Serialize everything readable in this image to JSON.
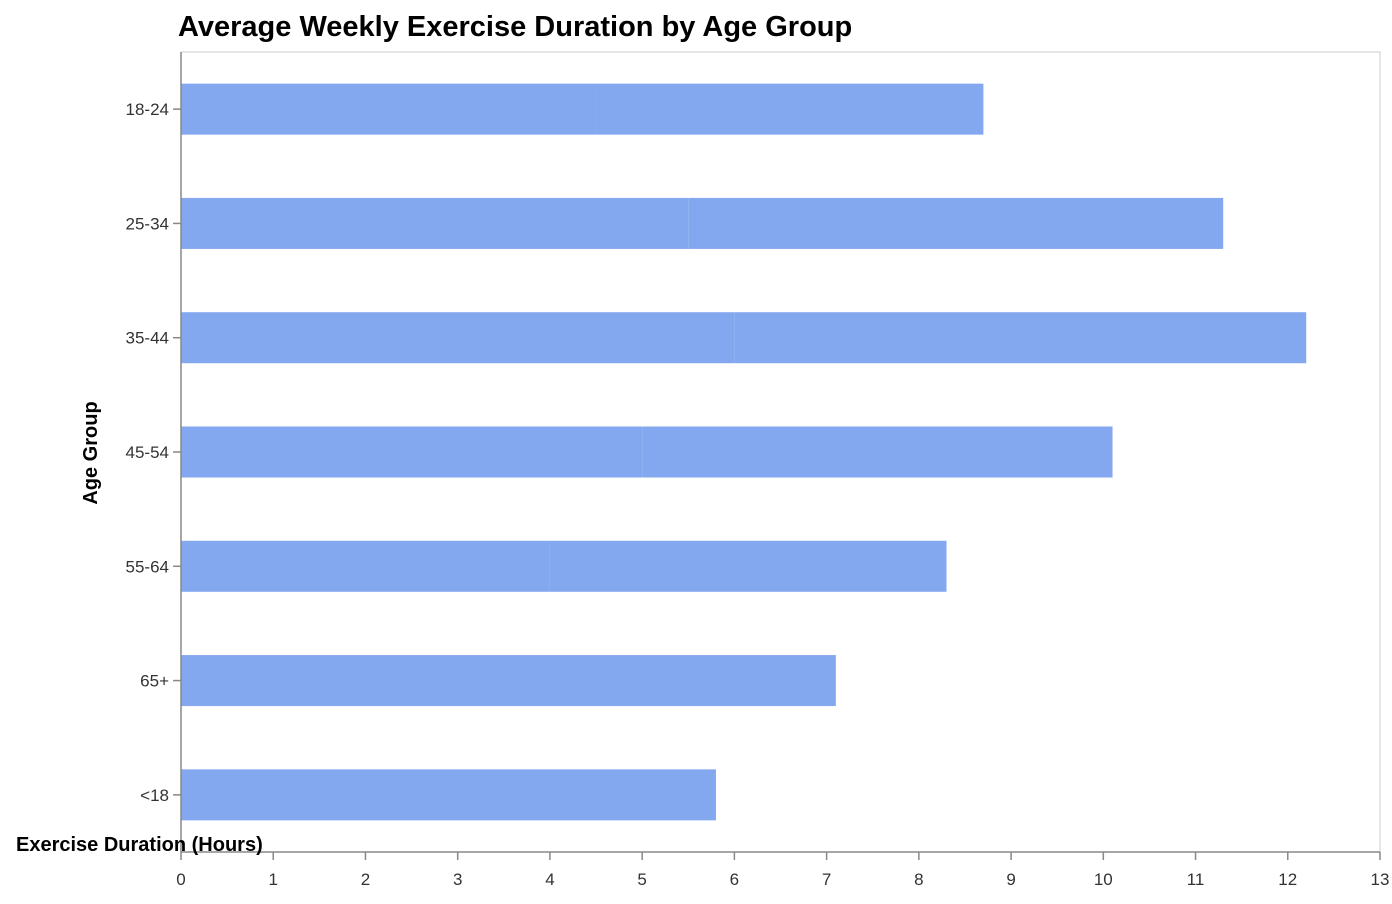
{
  "chart_data": {
    "type": "bar",
    "orientation": "horizontal",
    "stacked": true,
    "title": "Average Weekly Exercise Duration by Age Group",
    "xlabel": "Exercise Duration (Hours)",
    "ylabel": "Age Group",
    "xlim": [
      0,
      13
    ],
    "x_ticks": [
      "0",
      "1",
      "2",
      "3",
      "4",
      "5",
      "6",
      "7",
      "8",
      "9",
      "10",
      "11",
      "12",
      "13"
    ],
    "categories": [
      "18-24",
      "25-34",
      "35-44",
      "45-54",
      "55-64",
      "65+",
      "<18"
    ],
    "series": [
      {
        "values": [
          4.5,
          5.5,
          6.0,
          5.0,
          4.0,
          7.1,
          5.8
        ]
      },
      {
        "values": [
          4.2,
          5.8,
          6.2,
          5.1,
          4.3,
          0,
          0
        ]
      }
    ],
    "totals": [
      8.7,
      11.3,
      12.2,
      10.1,
      8.3,
      7.1,
      5.8
    ],
    "bar_color": "#83a8ef",
    "grid": false,
    "legend": "none"
  }
}
